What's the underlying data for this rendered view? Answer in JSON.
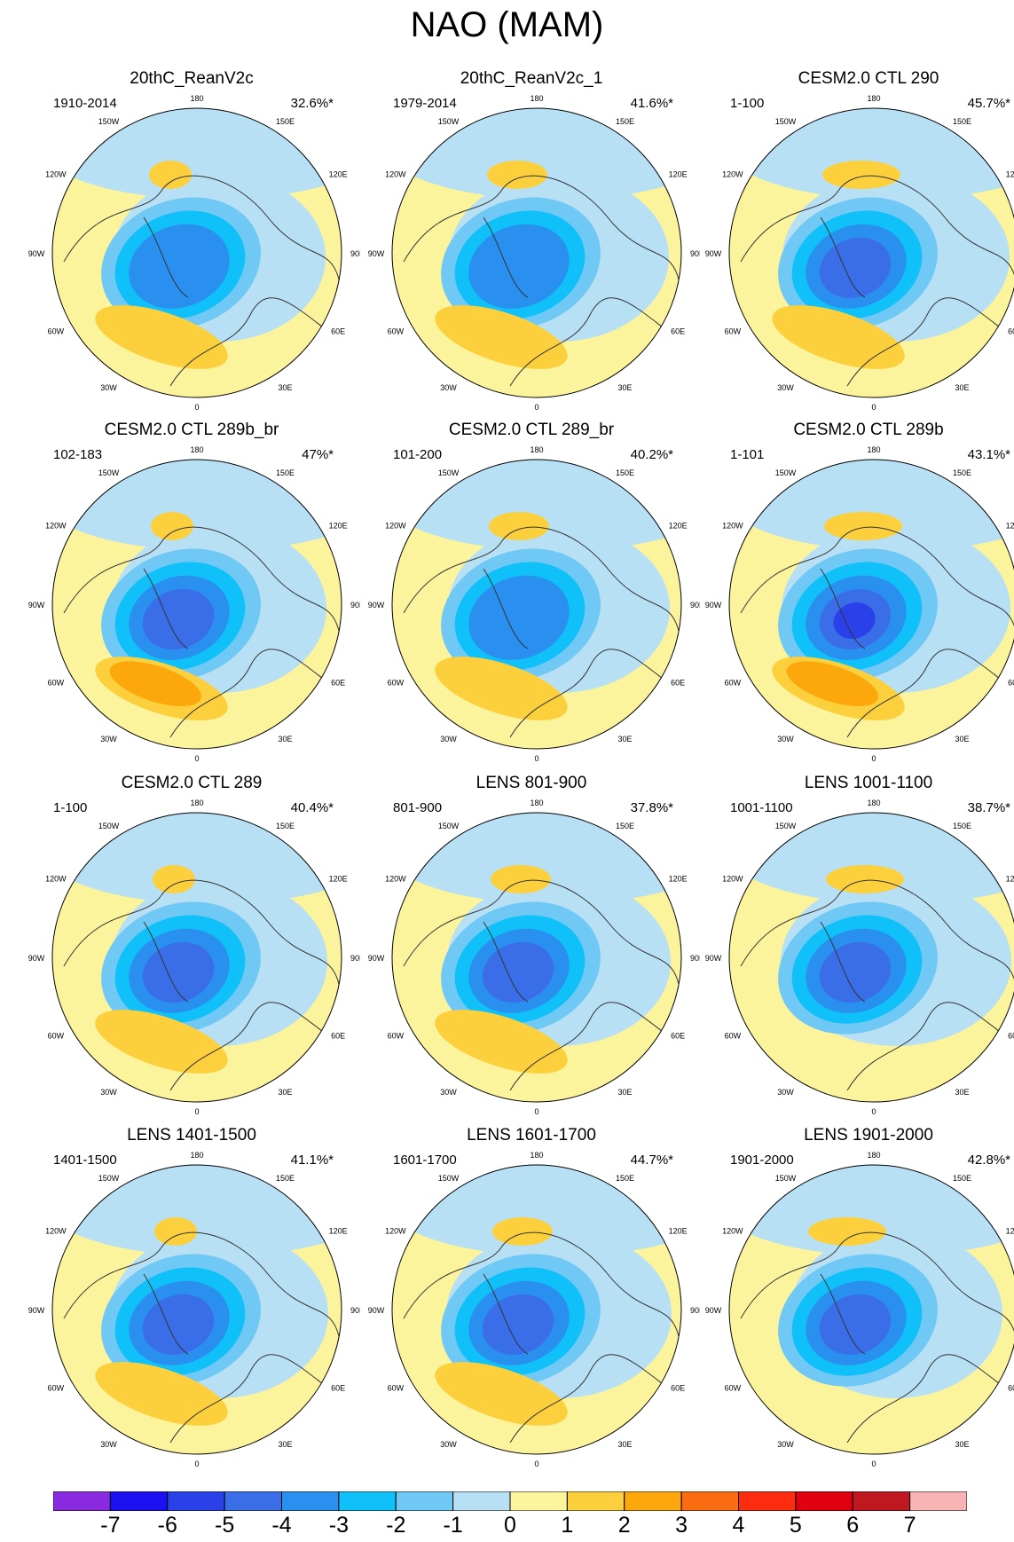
{
  "title": "NAO (MAM)",
  "colors": {
    "levels": [
      "#8a2be2",
      "#1a10f0",
      "#2a40e8",
      "#3a6ee8",
      "#2a90f0",
      "#10c0f8",
      "#70c8f4",
      "#b8e0f4",
      "#fcf49c",
      "#fcd03c",
      "#fca80c",
      "#fc6c10",
      "#fc2c10",
      "#e00010",
      "#c01820",
      "#f8b4b4"
    ],
    "land_outline": "#333333",
    "grid_label": "#000000"
  },
  "map_labels": {
    "lon_top": "180",
    "lon_bottom": "0",
    "lon_150w": "150W",
    "lon_150e": "150E",
    "lon_120w": "120W",
    "lon_120e": "120E",
    "lon_90w": "90W",
    "lon_90e": "90E",
    "lon_60w": "60W",
    "lon_60e": "60E",
    "lon_30w": "30W",
    "lon_30e": "30E"
  },
  "chart_data": {
    "type": "heatmap",
    "map_projection": "polar stereographic (Northern Hemisphere)",
    "colorbar": {
      "ticks": [
        "-7",
        "-6",
        "-5",
        "-4",
        "-3",
        "-2",
        "-1",
        "0",
        "1",
        "2",
        "3",
        "4",
        "5",
        "6",
        "7"
      ],
      "min": -7,
      "max": 7,
      "step": 1
    },
    "panels": [
      {
        "title": "20thC_ReanV2c",
        "period": "1910-2014",
        "percent": "32.6%*",
        "min_level": -4,
        "max_level": 2
      },
      {
        "title": "20thC_ReanV2c_1",
        "period": "1979-2014",
        "percent": "41.6%*",
        "min_level": -4,
        "max_level": 2
      },
      {
        "title": "CESM2.0 CTL 290",
        "period": "1-100",
        "percent": "45.7%*",
        "min_level": -5,
        "max_level": 2
      },
      {
        "title": "CESM2.0 CTL 289b_br",
        "period": "102-183",
        "percent": "47%*",
        "min_level": -5,
        "max_level": 3
      },
      {
        "title": "CESM2.0 CTL 289_br",
        "period": "101-200",
        "percent": "40.2%*",
        "min_level": -4,
        "max_level": 2
      },
      {
        "title": "CESM2.0 CTL 289b",
        "period": "1-101",
        "percent": "43.1%*",
        "min_level": -6,
        "max_level": 3
      },
      {
        "title": "CESM2.0 CTL 289",
        "period": "1-100",
        "percent": "40.4%*",
        "min_level": -5,
        "max_level": 2
      },
      {
        "title": "LENS 801-900",
        "period": "801-900",
        "percent": "37.8%*",
        "min_level": -5,
        "max_level": 2
      },
      {
        "title": "LENS 1001-1100",
        "period": "1001-1100",
        "percent": "38.7%*",
        "min_level": -5,
        "max_level": 1
      },
      {
        "title": "LENS 1401-1500",
        "period": "1401-1500",
        "percent": "41.1%*",
        "min_level": -5,
        "max_level": 2
      },
      {
        "title": "LENS 1601-1700",
        "period": "1601-1700",
        "percent": "44.7%*",
        "min_level": -5,
        "max_level": 2
      },
      {
        "title": "LENS 1901-2000",
        "period": "1901-2000",
        "percent": "42.8%*",
        "min_level": -5,
        "max_level": 1
      }
    ]
  }
}
